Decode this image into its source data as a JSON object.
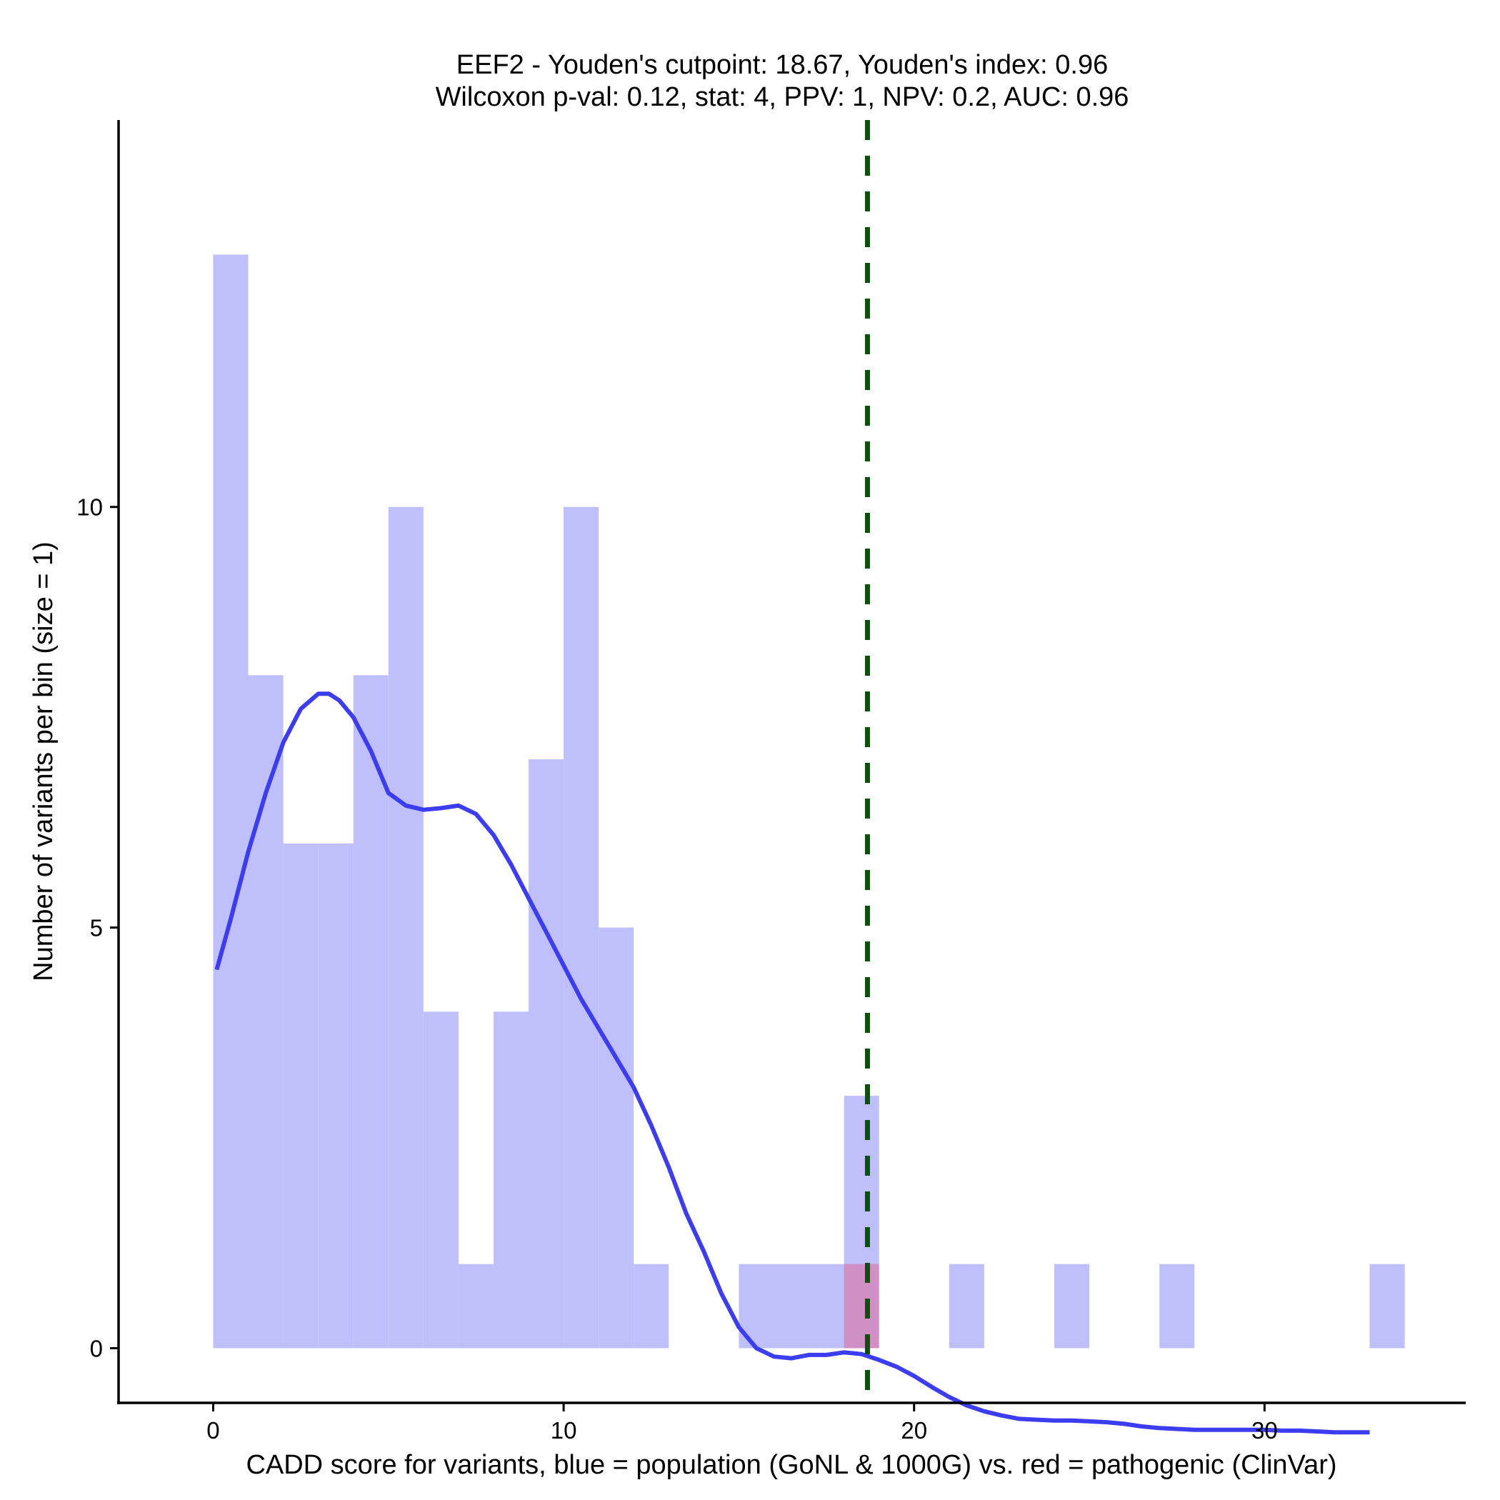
{
  "chart_data": {
    "type": "bar",
    "title": "EEF2 - Youden's cutpoint: 18.67, Youden's index: 0.96",
    "subtitle": "Wilcoxon p-val: 0.12, stat: 4, PPV: 1, NPV: 0.2, AUC: 0.96",
    "xlabel": "CADD score for variants, blue = population (GoNL & 1000G) vs. red = pathogenic (ClinVar)",
    "ylabel": "Number of variants per bin (size = 1)",
    "xlim": [
      -2.7,
      35.7
    ],
    "ylim": [
      -0.65,
      14.6
    ],
    "x_ticks": [
      0,
      10,
      20,
      30
    ],
    "y_ticks": [
      0,
      5,
      10
    ],
    "x_tick_labels": [
      "0",
      "10",
      "20",
      "30"
    ],
    "y_tick_labels": [
      "0",
      "5",
      "10"
    ],
    "bin_width": 1,
    "grid": false,
    "legend": "none",
    "series": [
      {
        "color": "#bfbffc",
        "bins": [
          {
            "start": 0,
            "count": 13
          },
          {
            "start": 1,
            "count": 8
          },
          {
            "start": 2,
            "count": 6
          },
          {
            "start": 3,
            "count": 6
          },
          {
            "start": 4,
            "count": 8
          },
          {
            "start": 5,
            "count": 10
          },
          {
            "start": 6,
            "count": 4
          },
          {
            "start": 7,
            "count": 1
          },
          {
            "start": 8,
            "count": 4
          },
          {
            "start": 9,
            "count": 7
          },
          {
            "start": 10,
            "count": 10
          },
          {
            "start": 11,
            "count": 5
          },
          {
            "start": 12,
            "count": 1
          },
          {
            "start": 15,
            "count": 1
          },
          {
            "start": 16,
            "count": 1
          },
          {
            "start": 17,
            "count": 1
          },
          {
            "start": 18,
            "count": 3
          },
          {
            "start": 21,
            "count": 1
          },
          {
            "start": 24,
            "count": 1
          },
          {
            "start": 27,
            "count": 1
          },
          {
            "start": 33,
            "count": 1
          }
        ]
      },
      {
        "color": "#d08fc5",
        "bins": [
          {
            "start": 18,
            "count": 1
          }
        ]
      }
    ],
    "density": {
      "color": "#3c3cf0",
      "x": [
        0.1,
        0.5,
        1.0,
        1.5,
        2.0,
        2.5,
        3.0,
        3.3,
        3.6,
        4.0,
        4.5,
        5.0,
        5.5,
        6.0,
        6.5,
        7.0,
        7.5,
        8.0,
        8.5,
        9.0,
        9.5,
        10.0,
        10.5,
        11.0,
        11.5,
        12.0,
        12.5,
        13.0,
        13.5,
        14.0,
        14.5,
        15.0,
        15.5,
        16.0,
        16.5,
        17.0,
        17.5,
        18.0,
        18.5,
        19.0,
        19.5,
        20.0,
        20.5,
        21.0,
        21.5,
        22.0,
        22.5,
        23.0,
        23.5,
        24.0,
        24.5,
        25.0,
        25.5,
        26.0,
        26.5,
        27.0,
        27.5,
        28.0,
        28.5,
        29.0,
        29.5,
        30.0,
        30.5,
        31.0,
        31.5,
        32.0,
        32.5,
        33.0
      ],
      "y": [
        4.5,
        5.1,
        5.9,
        6.6,
        7.2,
        7.6,
        7.78,
        7.78,
        7.7,
        7.5,
        7.1,
        6.6,
        6.45,
        6.4,
        6.42,
        6.45,
        6.35,
        6.1,
        5.75,
        5.35,
        4.95,
        4.55,
        4.15,
        3.8,
        3.45,
        3.1,
        2.65,
        2.15,
        1.6,
        1.15,
        0.65,
        0.25,
        0.0,
        -0.1,
        -0.12,
        -0.08,
        -0.08,
        -0.05,
        -0.07,
        -0.14,
        -0.22,
        -0.33,
        -0.46,
        -0.58,
        -0.68,
        -0.75,
        -0.8,
        -0.84,
        -0.85,
        -0.86,
        -0.86,
        -0.87,
        -0.88,
        -0.9,
        -0.93,
        -0.95,
        -0.96,
        -0.97,
        -0.97,
        -0.97,
        -0.97,
        -0.97,
        -0.98,
        -0.98,
        -0.99,
        -1.0,
        -1.0,
        -1.0
      ]
    },
    "cutpoint": {
      "x": 18.67,
      "color": "#0a520a",
      "style": "dashed"
    }
  }
}
